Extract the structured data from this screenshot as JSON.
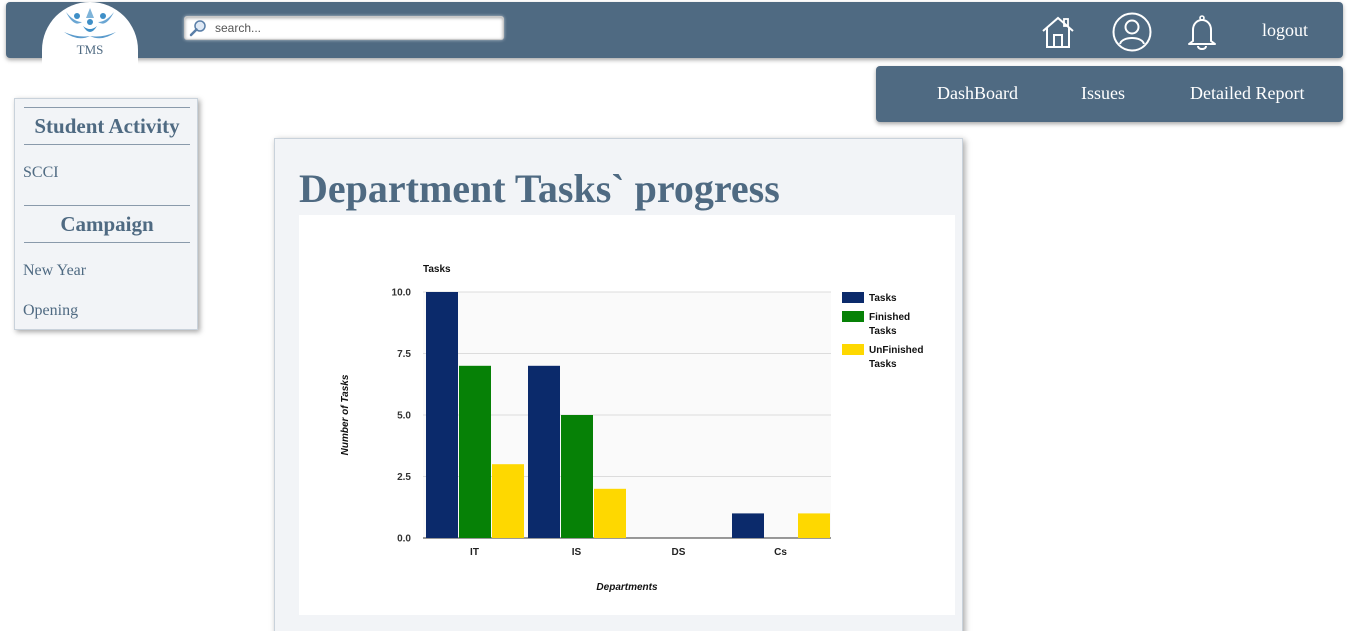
{
  "header": {
    "logo_text": "TMS",
    "search": {
      "placeholder": "search...",
      "value": ""
    },
    "icons": [
      "home-icon",
      "user-icon",
      "bell-icon"
    ],
    "logout_label": "logout",
    "colors": {
      "bar": "#4f6a82",
      "text": "#ffffff"
    }
  },
  "subnav": {
    "items": [
      {
        "label": "DashBoard"
      },
      {
        "label": "Issues"
      },
      {
        "label": "Detailed Report"
      }
    ]
  },
  "sidebar": {
    "sections": [
      {
        "heading": "Student Activity",
        "links": [
          "SCCI"
        ]
      },
      {
        "heading": "Campaign",
        "links": [
          "New Year",
          "Opening"
        ]
      }
    ]
  },
  "main": {
    "title": "Department Tasks` progress"
  },
  "chart_data": {
    "type": "bar",
    "title": "Tasks",
    "xlabel": "Departments",
    "ylabel": "Number of Tasks",
    "categories": [
      "IT",
      "IS",
      "DS",
      "Cs"
    ],
    "ylim": [
      0,
      10
    ],
    "yticks": [
      "0.0",
      "2.5",
      "5.0",
      "7.5",
      "10.0"
    ],
    "grid": true,
    "legend_position": "right",
    "series": [
      {
        "name": "Tasks",
        "values": [
          10,
          7,
          0,
          1
        ],
        "color": "#0b2a6b"
      },
      {
        "name": "Finished Tasks",
        "values": [
          7,
          5,
          0,
          0
        ],
        "color": "#068106"
      },
      {
        "name": "UnFinished Tasks",
        "values": [
          3,
          2,
          0,
          1
        ],
        "color": "#fed800"
      }
    ]
  }
}
